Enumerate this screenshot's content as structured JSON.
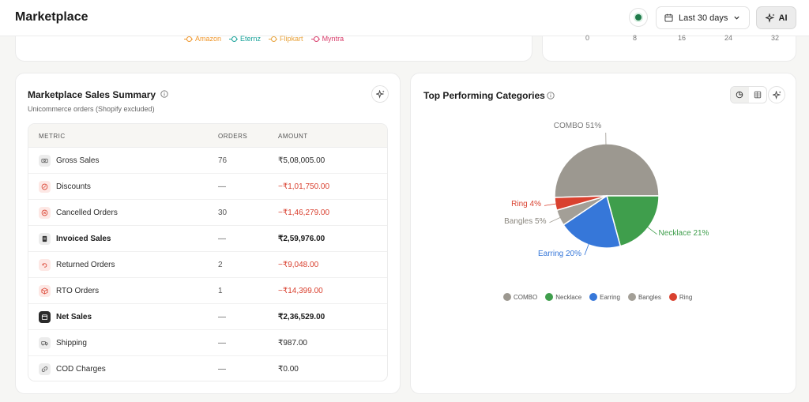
{
  "header": {
    "title": "Marketplace",
    "date_range": "Last 30 days",
    "ai_label": "AI"
  },
  "top_chart": {
    "legend": [
      {
        "name": "Amazon",
        "color": "#f0962a"
      },
      {
        "name": "Eternz",
        "color": "#1aa39a"
      },
      {
        "name": "Flipkart",
        "color": "#e8a23a"
      },
      {
        "name": "Myntra",
        "color": "#d83c6a"
      }
    ],
    "x_ticks": [
      "0",
      "8",
      "16",
      "24",
      "32"
    ]
  },
  "sales_summary": {
    "title": "Marketplace Sales Summary",
    "subtitle": "Unicommerce orders (Shopify excluded)",
    "columns": [
      "METRIC",
      "ORDERS",
      "AMOUNT"
    ],
    "rows": [
      {
        "metric": "Gross Sales",
        "orders": "76",
        "amount": "₹5,08,005.00",
        "icon": "cash-icon",
        "style": "normal"
      },
      {
        "metric": "Discounts",
        "orders": "—",
        "amount": "−₹1,01,750.00",
        "icon": "discount-icon",
        "style": "neg"
      },
      {
        "metric": "Cancelled Orders",
        "orders": "30",
        "amount": "−₹1,46,279.00",
        "icon": "cancel-icon",
        "style": "neg"
      },
      {
        "metric": "Invoiced Sales",
        "orders": "—",
        "amount": "₹2,59,976.00",
        "icon": "invoice-icon",
        "style": "bold"
      },
      {
        "metric": "Returned Orders",
        "orders": "2",
        "amount": "−₹9,048.00",
        "icon": "return-icon",
        "style": "neg"
      },
      {
        "metric": "RTO Orders",
        "orders": "1",
        "amount": "−₹14,399.00",
        "icon": "rto-package-icon",
        "style": "neg"
      },
      {
        "metric": "Net Sales",
        "orders": "—",
        "amount": "₹2,36,529.00",
        "icon": "net-sales-icon",
        "style": "bold"
      },
      {
        "metric": "Shipping",
        "orders": "—",
        "amount": "₹987.00",
        "icon": "truck-icon",
        "style": "normal"
      },
      {
        "metric": "COD Charges",
        "orders": "—",
        "amount": "₹0.00",
        "icon": "link-icon",
        "style": "normal"
      }
    ]
  },
  "categories": {
    "title": "Top Performing Categories"
  },
  "chart_data": {
    "type": "pie",
    "categories": [
      "COMBO",
      "Necklace",
      "Earring",
      "Bangles",
      "Ring"
    ],
    "values": [
      51,
      21,
      20,
      5,
      4
    ],
    "slice_labels": [
      "COMBO 51%",
      "Necklace 21%",
      "Earring 20%",
      "Bangles 5%",
      "Ring 4%"
    ],
    "colors": [
      "#9c9890",
      "#3f9e4c",
      "#3677d9",
      "#a39f97",
      "#d9412f"
    ],
    "legend_position": "bottom"
  }
}
